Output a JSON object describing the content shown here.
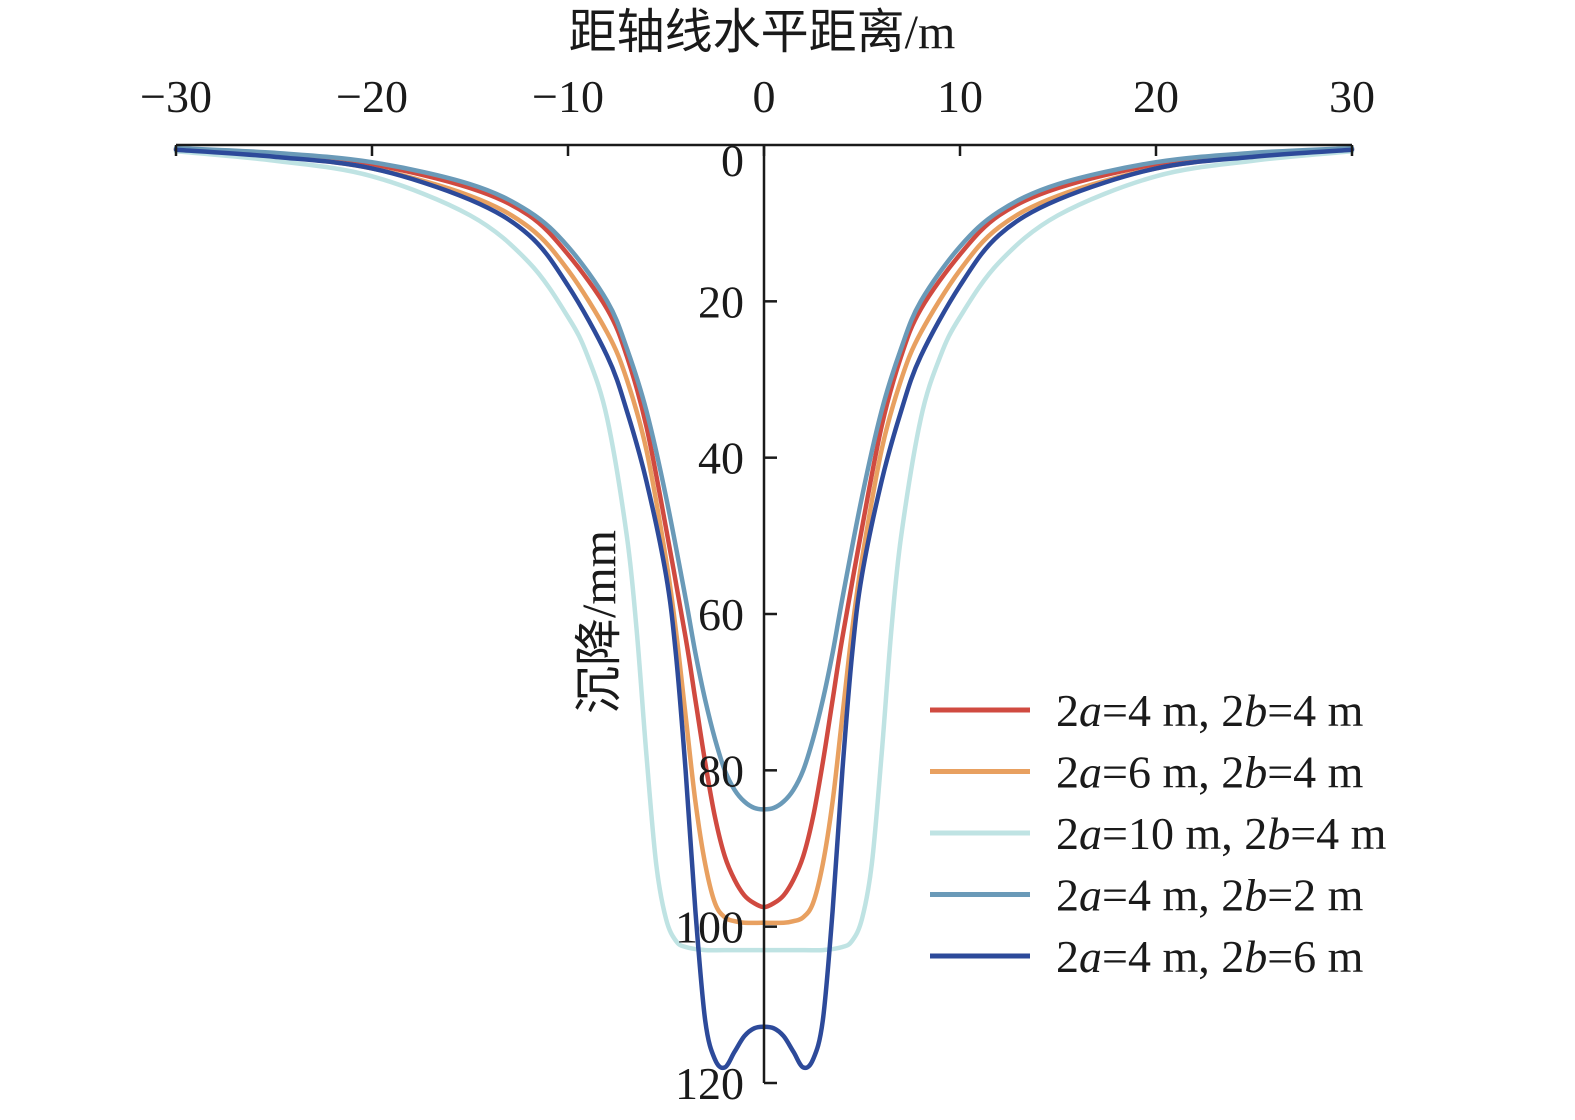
{
  "chart_data": {
    "type": "line",
    "xlabel": "距轴线水平距离/m",
    "ylabel": "沉降/mm",
    "xlim": [
      -30,
      30
    ],
    "ylim": [
      0,
      120
    ],
    "y_inverted": true,
    "x_axis_position": "top",
    "y_axis_position": "center",
    "x_ticks": [
      -30,
      -20,
      -10,
      0,
      10,
      20,
      30
    ],
    "x_tick_labels": [
      "−30",
      "−20",
      "−10",
      "0",
      "10",
      "20",
      "30"
    ],
    "y_ticks": [
      0,
      20,
      40,
      60,
      80,
      100,
      120
    ],
    "y_tick_labels": [
      "0",
      "20",
      "40",
      "60",
      "80",
      "100",
      "120"
    ],
    "grid": false,
    "legend_position": "bottom-right",
    "series": [
      {
        "name": "2a=4 m, 2b=4 m",
        "legend_parts": [
          [
            "2",
            false
          ],
          [
            "a",
            true
          ],
          [
            "=4 m, 2",
            false
          ],
          [
            "b",
            true
          ],
          [
            "=4 m",
            false
          ]
        ],
        "color": "#d04a40",
        "x": [
          -30,
          -25,
          -20,
          -15,
          -12,
          -10,
          -8,
          -7,
          -6,
          -5,
          -4,
          -3.5,
          -3,
          -2.5,
          -2,
          -1.5,
          -1,
          -0.5,
          0,
          0.5,
          1,
          1.5,
          2,
          2.5,
          3,
          3.5,
          4,
          5,
          6,
          7,
          8,
          10,
          12,
          15,
          20,
          25,
          30
        ],
        "y": [
          0.5,
          1.2,
          2.5,
          5.5,
          9,
          14,
          21,
          27,
          36,
          49,
          63,
          71,
          79,
          86,
          91,
          94,
          96,
          97,
          97.5,
          97,
          96,
          94,
          91,
          86,
          79,
          71,
          63,
          49,
          36,
          27,
          21,
          14,
          9,
          5.5,
          2.5,
          1.2,
          0.5
        ]
      },
      {
        "name": "2a=6 m, 2b=4 m",
        "legend_parts": [
          [
            "2",
            false
          ],
          [
            "a",
            true
          ],
          [
            "=6 m, 2",
            false
          ],
          [
            "b",
            true
          ],
          [
            "=4 m",
            false
          ]
        ],
        "color": "#e8a060",
        "x": [
          -30,
          -25,
          -20,
          -15,
          -12,
          -10,
          -8,
          -7,
          -6,
          -5,
          -4.5,
          -4,
          -3.5,
          -3,
          -2.5,
          -2,
          -1.5,
          -1,
          0,
          1,
          1.5,
          2,
          2.5,
          3,
          3.5,
          4,
          4.5,
          5,
          6,
          7,
          8,
          10,
          12,
          15,
          20,
          25,
          30
        ],
        "y": [
          0.6,
          1.4,
          3,
          6.5,
          10.5,
          16,
          24,
          30,
          39,
          53,
          62,
          73,
          84,
          92,
          97,
          98.8,
          99.3,
          99.5,
          99.5,
          99.5,
          99.3,
          98.8,
          97,
          92,
          84,
          73,
          62,
          53,
          39,
          30,
          24,
          16,
          10.5,
          6.5,
          3,
          1.4,
          0.6
        ]
      },
      {
        "name": "2a=10 m, 2b=4 m",
        "legend_parts": [
          [
            "2",
            false
          ],
          [
            "a",
            true
          ],
          [
            "=10 m, 2",
            false
          ],
          [
            "b",
            true
          ],
          [
            "=4 m",
            false
          ]
        ],
        "color": "#bfe3e3",
        "x": [
          -30,
          -25,
          -20,
          -15,
          -12,
          -10,
          -9,
          -8,
          -7,
          -6.5,
          -6,
          -5.5,
          -5,
          -4.5,
          -4,
          -3,
          -2,
          0,
          2,
          3,
          4,
          4.5,
          5,
          5.5,
          6,
          6.5,
          7,
          8,
          9,
          10,
          12,
          15,
          20,
          25,
          30
        ],
        "y": [
          0.8,
          2,
          4,
          9,
          15,
          22,
          27,
          35,
          50,
          62,
          78,
          92,
          99,
          101.8,
          102.6,
          103,
          103,
          103,
          103,
          103,
          102.6,
          101.8,
          99,
          92,
          78,
          62,
          50,
          35,
          27,
          22,
          15,
          9,
          4,
          2,
          0.8
        ]
      },
      {
        "name": "2a=4 m, 2b=2 m",
        "legend_parts": [
          [
            "2",
            false
          ],
          [
            "a",
            true
          ],
          [
            "=4 m, 2",
            false
          ],
          [
            "b",
            true
          ],
          [
            "=2 m",
            false
          ]
        ],
        "color": "#6a9ab8",
        "x": [
          -30,
          -25,
          -20,
          -15,
          -12,
          -10,
          -8,
          -7,
          -6,
          -5,
          -4,
          -3.5,
          -3,
          -2.5,
          -2,
          -1.5,
          -1,
          -0.5,
          0,
          0.5,
          1,
          1.5,
          2,
          2.5,
          3,
          3.5,
          4,
          5,
          6,
          7,
          8,
          10,
          12,
          15,
          20,
          25,
          30
        ],
        "y": [
          0.4,
          1,
          2.2,
          5,
          8.5,
          13,
          20,
          26,
          34,
          45,
          58,
          65,
          71,
          76,
          80,
          82.5,
          84,
          84.8,
          85,
          84.8,
          84,
          82.5,
          80,
          76,
          71,
          65,
          58,
          45,
          34,
          26,
          20,
          13,
          8.5,
          5,
          2.2,
          1,
          0.4
        ]
      },
      {
        "name": "2a=4 m, 2b=6 m",
        "legend_parts": [
          [
            "2",
            false
          ],
          [
            "a",
            true
          ],
          [
            "=4 m, 2",
            false
          ],
          [
            "b",
            true
          ],
          [
            "=6 m",
            false
          ]
        ],
        "color": "#2d4a9a",
        "x": [
          -30,
          -25,
          -20,
          -15,
          -12,
          -10,
          -8,
          -7,
          -6,
          -5,
          -4.5,
          -4,
          -3.5,
          -3,
          -2.5,
          -2,
          -1.5,
          -1,
          -0.5,
          0,
          0.5,
          1,
          1.5,
          2,
          2.5,
          3,
          3.5,
          4,
          4.5,
          5,
          6,
          7,
          8,
          10,
          12,
          15,
          20,
          25,
          30
        ],
        "y": [
          0.6,
          1.5,
          3,
          7,
          11.5,
          18,
          27,
          34,
          43,
          55,
          65,
          80,
          98,
          112,
          117,
          118,
          116,
          114,
          113,
          112.8,
          113,
          114,
          116,
          118,
          117,
          112,
          98,
          80,
          65,
          55,
          43,
          34,
          27,
          18,
          11.5,
          7,
          3,
          1.5,
          0.6
        ]
      }
    ]
  }
}
